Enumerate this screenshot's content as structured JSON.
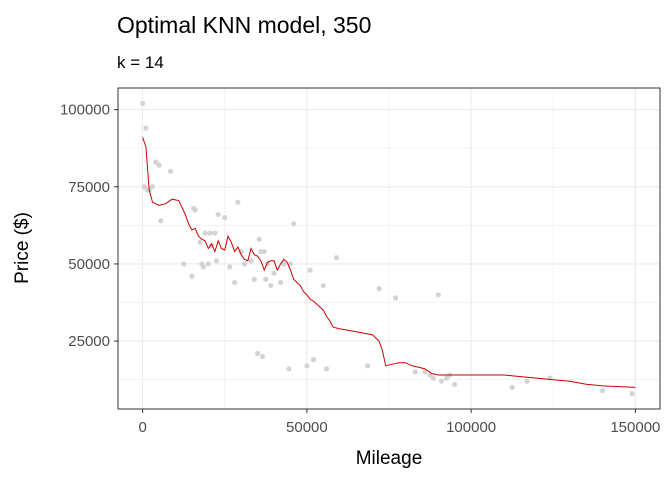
{
  "chart_data": {
    "type": "scatter",
    "title": "Optimal KNN model, 350",
    "subtitle": "k = 14",
    "xlabel": "Mileage",
    "ylabel": "Price ($)",
    "xlim": [
      -7500,
      157500
    ],
    "ylim": [
      3000,
      107000
    ],
    "x_ticks": [
      0,
      50000,
      100000,
      150000
    ],
    "x_tick_labels": [
      "0",
      "50000",
      "100000",
      "150000"
    ],
    "y_ticks": [
      25000,
      50000,
      75000,
      100000
    ],
    "y_tick_labels": [
      "25000",
      "50000",
      "75000",
      "100000"
    ],
    "grid": true,
    "colors": {
      "points": "#d3d3d3",
      "line": "#cc0000",
      "panel_border": "#333333",
      "grid": "#ebebeb"
    },
    "series": [
      {
        "kind": "points",
        "x": [
          0,
          500,
          1000,
          1500,
          2000,
          3000,
          4000,
          5000,
          5500,
          8500,
          12500,
          15000,
          15500,
          16000,
          17500,
          18000,
          18500,
          19000,
          20000,
          20500,
          21000,
          22000,
          22500,
          23000,
          25000,
          26500,
          28000,
          29000,
          30000,
          31000,
          33000,
          34000,
          35000,
          35500,
          36000,
          36500,
          37000,
          37500,
          38000,
          39000,
          40000,
          42000,
          43000,
          44500,
          45000,
          46000,
          50000,
          51000,
          52000,
          55000,
          56000,
          59000,
          68500,
          72000,
          77000,
          83000,
          86000,
          87500,
          88500,
          90000,
          91000,
          92500,
          93500,
          95000,
          112500,
          117000,
          124000,
          140000,
          149000
        ],
        "y": [
          102000,
          75000,
          94000,
          74000,
          74000,
          75000,
          83000,
          82000,
          64000,
          80000,
          50000,
          46000,
          68000,
          67500,
          57000,
          50000,
          49000,
          60000,
          50000,
          60000,
          56000,
          60000,
          51000,
          66000,
          65000,
          49000,
          44000,
          70000,
          54000,
          50000,
          51000,
          45000,
          21000,
          58000,
          54000,
          20000,
          54000,
          45000,
          50000,
          43000,
          47000,
          44000,
          50000,
          16000,
          50000,
          63000,
          17000,
          48000,
          19000,
          43000,
          16000,
          52000,
          17000,
          42000,
          39000,
          15000,
          15000,
          14000,
          13000,
          40000,
          12000,
          13000,
          14000,
          11000,
          10000,
          12000,
          13000,
          9000,
          8000
        ]
      },
      {
        "kind": "line",
        "x": [
          0,
          1000,
          2000,
          3000,
          5000,
          7000,
          9000,
          11000,
          13000,
          14000,
          15000,
          16000,
          17000,
          18000,
          19000,
          20000,
          21000,
          22000,
          23000,
          24000,
          25000,
          26000,
          27000,
          28000,
          29000,
          30000,
          31000,
          32000,
          33000,
          34000,
          35000,
          36000,
          37000,
          38000,
          39000,
          40000,
          41000,
          42000,
          43000,
          44000,
          45000,
          46000,
          47000,
          48000,
          49000,
          50000,
          51000,
          52000,
          53000,
          54000,
          55000,
          56000,
          57000,
          58000,
          60000,
          65000,
          70000,
          72000,
          73000,
          74000,
          76000,
          78000,
          80000,
          82000,
          84000,
          86000,
          88000,
          90000,
          92000,
          95000,
          100000,
          105000,
          110000,
          115000,
          120000,
          125000,
          130000,
          135000,
          140000,
          150000
        ],
        "y": [
          91000,
          88000,
          74000,
          70000,
          69000,
          69500,
          71000,
          70500,
          66000,
          63000,
          61000,
          61500,
          59000,
          58000,
          57500,
          55000,
          56500,
          54000,
          57500,
          55000,
          54500,
          59000,
          57000,
          54000,
          55500,
          53000,
          51500,
          51000,
          55000,
          53000,
          52500,
          51000,
          48000,
          50500,
          51000,
          51000,
          48000,
          50000,
          51500,
          50500,
          48000,
          45000,
          44000,
          43000,
          41000,
          40000,
          38500,
          38000,
          37000,
          36000,
          35000,
          33000,
          31500,
          29500,
          29000,
          28000,
          27000,
          25000,
          22000,
          17000,
          17500,
          18000,
          18000,
          17000,
          16500,
          16000,
          14500,
          14000,
          14000,
          14000,
          14000,
          14000,
          14000,
          13500,
          13000,
          12500,
          12000,
          11000,
          10500,
          10000
        ]
      }
    ]
  }
}
